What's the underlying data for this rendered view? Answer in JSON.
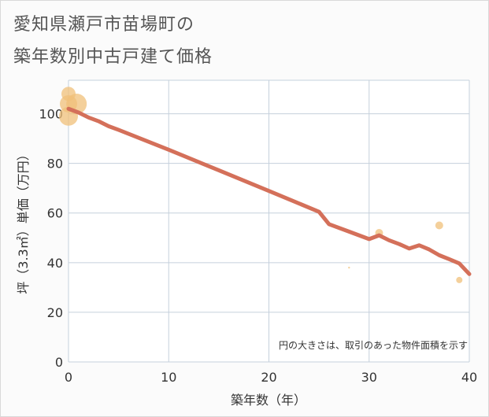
{
  "title_line1": "愛知県瀬戸市苗場町の",
  "title_line2": "築年数別中古戸建て価格",
  "chart_data": {
    "type": "scatter",
    "title": "愛知県瀬戸市苗場町の築年数別中古戸建て価格",
    "xlabel": "築年数（年）",
    "ylabel": "坪（3.3㎡）単価（万円）",
    "xlim": [
      0,
      40
    ],
    "ylim": [
      0,
      110
    ],
    "xticks": [
      0,
      10,
      20,
      30,
      40
    ],
    "yticks": [
      0,
      20,
      40,
      60,
      80,
      100
    ],
    "grid": true,
    "note": "円の大きさは、取引のあった物件面積を示す",
    "trend_line": {
      "name": "trend",
      "color": "#d4705a",
      "x": [
        0,
        1,
        2,
        3,
        4,
        5,
        10,
        15,
        20,
        25,
        26,
        28,
        30,
        31,
        32,
        33,
        34,
        35,
        36,
        37,
        38,
        39,
        40
      ],
      "y": [
        102,
        100.5,
        98.5,
        97,
        95,
        93.5,
        85.5,
        77.2,
        68.9,
        60.5,
        55.5,
        52.5,
        49.5,
        51,
        49,
        47.5,
        45.7,
        47,
        45.3,
        43,
        41.4,
        39.7,
        35.4
      ]
    },
    "points": [
      {
        "x": 0,
        "y": 108,
        "size": 9
      },
      {
        "x": 0,
        "y": 104,
        "size": 11
      },
      {
        "x": 0,
        "y": 99,
        "size": 12
      },
      {
        "x": 0.8,
        "y": 104,
        "size": 13
      },
      {
        "x": 28,
        "y": 38,
        "size": 1.2
      },
      {
        "x": 31,
        "y": 52,
        "size": 5
      },
      {
        "x": 37,
        "y": 55,
        "size": 5
      },
      {
        "x": 39,
        "y": 33,
        "size": 4
      }
    ],
    "point_color": "#f0c07a"
  }
}
